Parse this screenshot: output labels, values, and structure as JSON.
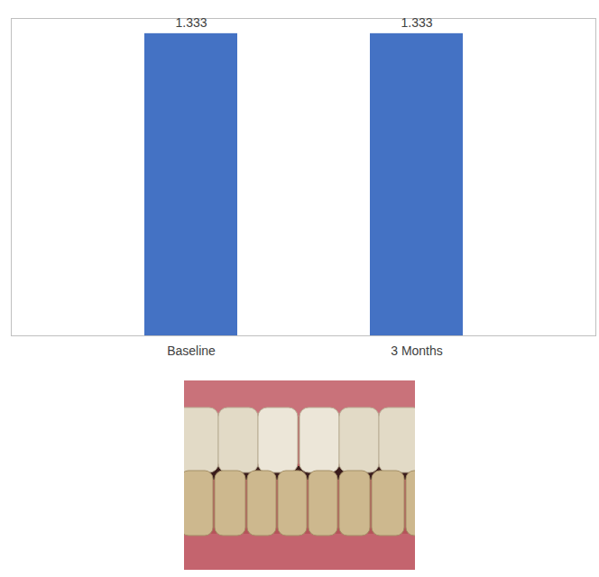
{
  "chart_data": {
    "type": "bar",
    "categories": [
      "Baseline",
      "3 Months"
    ],
    "values": [
      1.333,
      1.333
    ],
    "color": "#4472c4",
    "ylim": [
      0,
      1.4
    ],
    "yticks": [],
    "data_labels": true,
    "tick_labels": "x"
  }
}
